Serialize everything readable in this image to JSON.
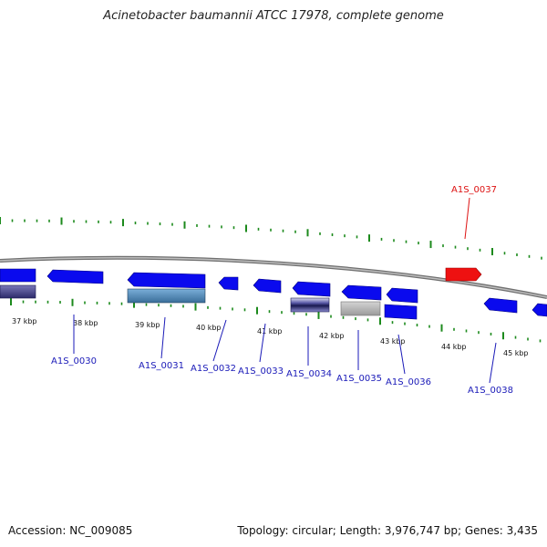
{
  "title": "Acinetobacter baumannii ATCC 17978, complete genome",
  "accession": "Accession: NC_009085",
  "topology": "Topology: circular; Length: 3,976,747 bp; Genes: 3,435",
  "colors": {
    "forward_gene": "#0a0aee",
    "label_blue": "#1a1ab8",
    "highlight_gene": "#ee1111",
    "highlight_label": "#dd1111",
    "ruler_ticks": "#1c8a1c",
    "backbone": "#8a8a8a"
  },
  "ruler_labels": [
    "37 kbp",
    "38 kbp",
    "39 kbp",
    "40 kbp",
    "41 kbp",
    "42 kbp",
    "43 kbp",
    "44 kbp",
    "45 kbp"
  ],
  "gene_labels": [
    {
      "name": "A1S_0030",
      "strand": "reverse"
    },
    {
      "name": "A1S_0031",
      "strand": "reverse"
    },
    {
      "name": "A1S_0032",
      "strand": "reverse"
    },
    {
      "name": "A1S_0033",
      "strand": "reverse"
    },
    {
      "name": "A1S_0034",
      "strand": "reverse"
    },
    {
      "name": "A1S_0035",
      "strand": "reverse"
    },
    {
      "name": "A1S_0036",
      "strand": "reverse"
    },
    {
      "name": "A1S_0037",
      "strand": "forward",
      "highlighted": true
    },
    {
      "name": "A1S_0038",
      "strand": "reverse"
    }
  ]
}
